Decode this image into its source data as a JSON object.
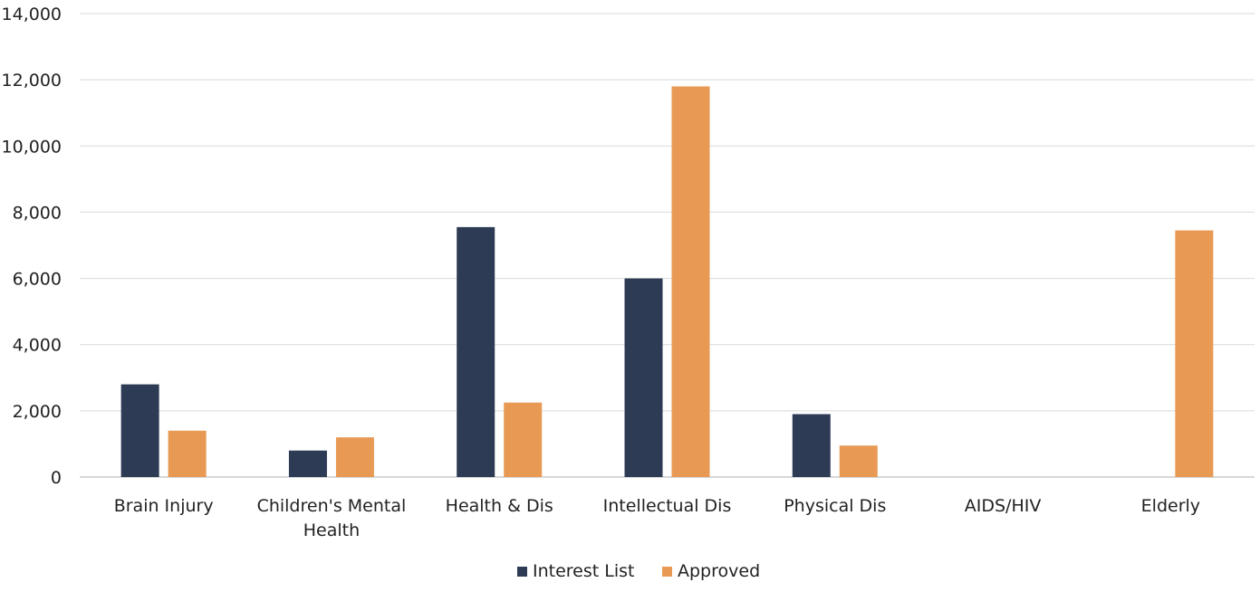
{
  "chart_data": {
    "type": "bar",
    "title": "",
    "xlabel": "",
    "ylabel": "",
    "ylim": [
      0,
      14000
    ],
    "yticks": [
      0,
      2000,
      4000,
      6000,
      8000,
      10000,
      12000,
      14000
    ],
    "ytick_labels": [
      "0",
      "2,000",
      "4,000",
      "6,000",
      "8,000",
      "10,000",
      "12,000",
      "14,000"
    ],
    "grid": true,
    "legend_position": "bottom",
    "categories": [
      [
        "Brain Injury"
      ],
      [
        "Children's Mental",
        "Health"
      ],
      [
        "Health & Dis"
      ],
      [
        "Intellectual Dis"
      ],
      [
        "Physical Dis"
      ],
      [
        "AIDS/HIV"
      ],
      [
        "Elderly"
      ]
    ],
    "series": [
      {
        "name": "Interest List",
        "color": "#2e3b55",
        "values": [
          2800,
          800,
          7550,
          6000,
          1900,
          0,
          0
        ]
      },
      {
        "name": "Approved",
        "color": "#e89a54",
        "values": [
          1400,
          1200,
          2250,
          11800,
          950,
          0,
          7450
        ]
      }
    ]
  }
}
